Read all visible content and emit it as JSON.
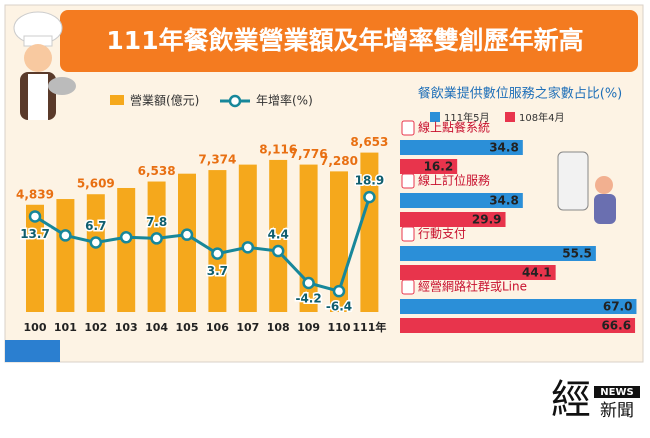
{
  "header": {
    "title": "111年餐飲業營業額及年增率雙創歷年新高"
  },
  "footer": {
    "logo": "經",
    "logo_sub": "NEWS",
    "logo_name": "新聞"
  },
  "chart_data": [
    {
      "type": "bar",
      "categories": [
        "100",
        "101",
        "102",
        "103",
        "104",
        "105",
        "106",
        "107",
        "108",
        "109",
        "110",
        "111年"
      ],
      "ylim": [
        -3000,
        9500
      ],
      "y2lim": [
        -12,
        34
      ],
      "series": [
        {
          "name": "營業額(億元)",
          "color": "#f5a81c",
          "values": [
            4839,
            5257,
            5609,
            6065,
            6538,
            7111,
            7374,
            7774,
            8116,
            7776,
            7280,
            8653
          ],
          "value_labels": [
            "4,839",
            null,
            "5,609",
            null,
            "6,538",
            null,
            "7,374",
            null,
            "8,116",
            "7,776",
            "7,280",
            "8,653"
          ]
        },
        {
          "name": "年增率(%)",
          "color": "#17879a",
          "axis": "y2",
          "values": [
            13.7,
            8.6,
            6.7,
            8.1,
            7.8,
            8.8,
            3.7,
            5.4,
            4.4,
            -4.2,
            -6.4,
            18.9
          ],
          "value_labels": [
            "13.7",
            null,
            "6.7",
            null,
            "7.8",
            null,
            "3.7",
            null,
            "4.4",
            "-4.2",
            "-6.4",
            "18.9"
          ]
        }
      ]
    },
    {
      "type": "barh",
      "title": "餐飲業提供數位服務之家數占比(%)",
      "categories": [
        "線上點餐系統",
        "線上訂位服務",
        "行動支付",
        "經營網路社群或Line"
      ],
      "xlim": [
        0,
        68
      ],
      "series": [
        {
          "name": "111年5月",
          "color": "#2b8fd8",
          "values": [
            34.8,
            34.8,
            55.5,
            67.0
          ],
          "value_labels": [
            "34.8",
            "34.8",
            "55.5",
            "67.0"
          ]
        },
        {
          "name": "108年4月",
          "color": "#e8344c",
          "values": [
            16.2,
            29.9,
            44.1,
            66.6
          ]
        }
      ]
    }
  ]
}
